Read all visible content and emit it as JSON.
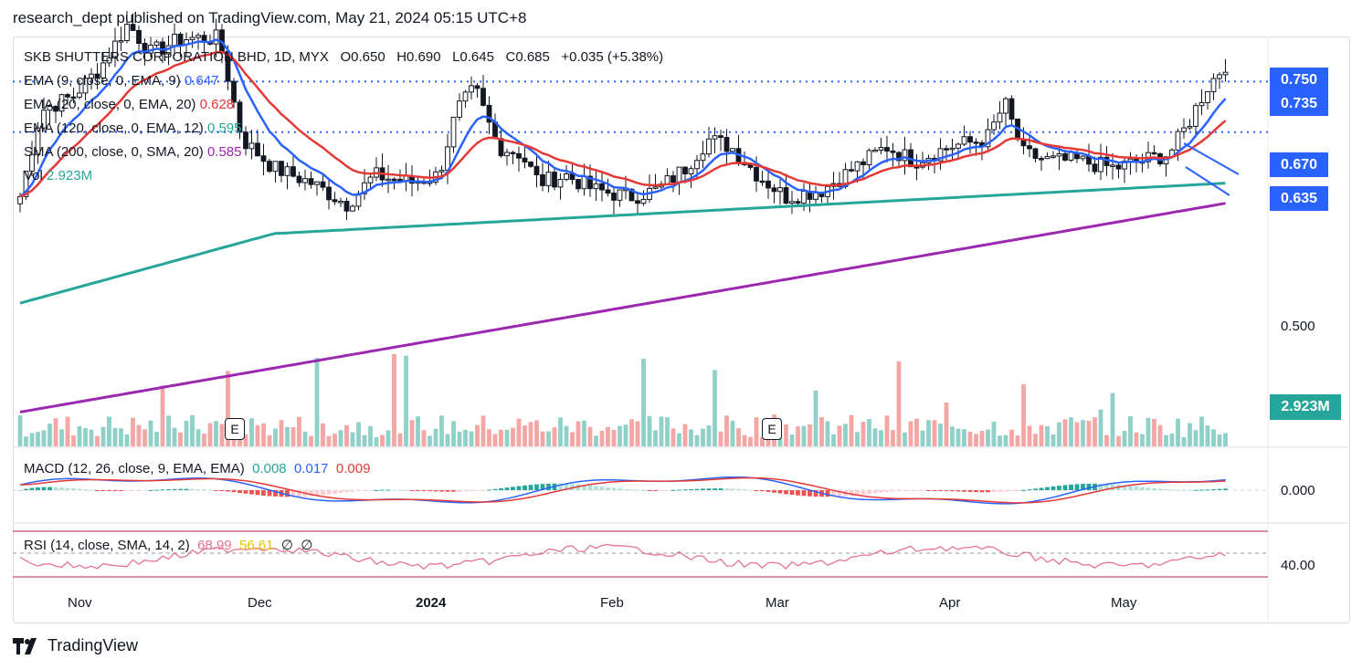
{
  "header": {
    "published": "research_dept published on TradingView.com, May 21, 2024 05:15 UTC+8"
  },
  "legend": {
    "symbol": "SKB SHUTTERS CORPORATION BHD, 1D, MYX",
    "open": "O0.650",
    "high": "H0.690",
    "low": "L0.645",
    "close": "C0.685",
    "change": "+0.035 (+5.38%)",
    "ema9_label": "EMA (9, close, 0, EMA, 9)",
    "ema9_value": "0.647",
    "ema20_label": "EMA (20, close, 0, EMA, 20)",
    "ema20_value": "0.628",
    "ema120_label": "EMA (120, close, 0, EMA, 12)",
    "ema120_value": "0.595",
    "sma200_label": "SMA (200, close, 0, SMA, 20)",
    "sma200_value": "0.585",
    "vol_label": "Vol",
    "vol_value": "2.923M"
  },
  "price_levels": {
    "l750": "0.750",
    "l735": "0.735",
    "l670": "0.670",
    "l635": "0.635",
    "l500": "0.500"
  },
  "volume_label": "2.923M",
  "macd": {
    "label": "MACD (12, 26, close, 9, EMA, EMA)",
    "v1": "0.008",
    "v2": "0.017",
    "v3": "0.009",
    "axis": "0.000"
  },
  "rsi": {
    "label": "RSI (14, close, SMA, 14, 2)",
    "v1": "68.99",
    "v2": "56.61",
    "v3": "∅",
    "v4": "∅",
    "axis": "40.00"
  },
  "xaxis": [
    "Nov",
    "Dec",
    "2024",
    "Feb",
    "Mar",
    "Apr",
    "May"
  ],
  "earnings_marker": "E",
  "brand": "TradingView",
  "colors": {
    "up": "#26a69a",
    "down": "#ef5350",
    "ema9": "#2962ff",
    "ema20": "#e53935",
    "ema120": "#26a69a",
    "sma200": "#9c27b0",
    "level": "#2962ff",
    "rsi": "#e57390",
    "signal_yellow": "#e5c400"
  },
  "chart_data": {
    "type": "candlestick",
    "levels": [
      0.75,
      0.735,
      0.67,
      0.635
    ],
    "last": {
      "open": 0.65,
      "high": 0.69,
      "low": 0.645,
      "close": 0.685
    },
    "ma_last": {
      "ema9": 0.647,
      "ema20": 0.628,
      "ema120": 0.595,
      "sma200": 0.585
    }
  }
}
